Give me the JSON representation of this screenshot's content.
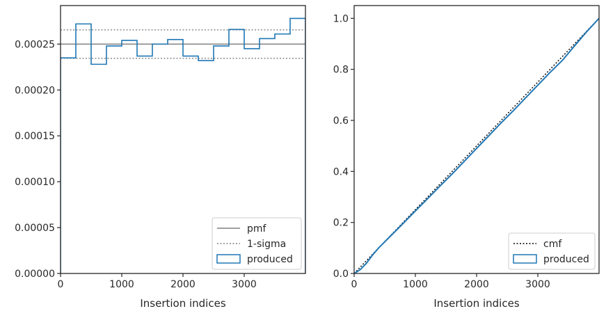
{
  "chart_data": [
    {
      "type": "line",
      "xlabel": "Insertion indices",
      "ylabel": "",
      "xlim": [
        0,
        4000
      ],
      "ylim": [
        0,
        0.000292
      ],
      "xticks": [
        0,
        1000,
        2000,
        3000
      ],
      "xtick_labels": [
        "0",
        "1000",
        "2000",
        "3000"
      ],
      "yticks": [
        0,
        5e-05,
        0.0001,
        0.00015,
        0.0002,
        0.00025
      ],
      "ytick_labels": [
        "0.00000",
        "0.00005",
        "0.00010",
        "0.00015",
        "0.00020",
        "0.00025"
      ],
      "grid": false,
      "legend_placement": "lower-right",
      "series": [
        {
          "name": "pmf",
          "style": "solid",
          "color": "#808080",
          "x": [
            0,
            4000
          ],
          "y": [
            0.00025,
            0.00025
          ]
        },
        {
          "name": "1-sigma",
          "style": "dotted",
          "color": "#808080",
          "x": [
            0,
            4000
          ],
          "y": [
            0.0002345,
            0.0002345
          ],
          "y_upper": [
            0.0002655,
            0.0002655
          ]
        },
        {
          "name": "produced",
          "style": "step-histogram",
          "color": "#1f77b4",
          "bin_edges": [
            0,
            250,
            500,
            750,
            1000,
            1250,
            1500,
            1750,
            2000,
            2250,
            2500,
            2750,
            3000,
            3250,
            3500,
            3750,
            4000
          ],
          "values": [
            0.000235,
            0.000272,
            0.000228,
            0.000248,
            0.000254,
            0.000237,
            0.00025,
            0.000255,
            0.000237,
            0.000232,
            0.000248,
            0.000266,
            0.000245,
            0.000256,
            0.000261,
            0.000278
          ]
        }
      ]
    },
    {
      "type": "line",
      "xlabel": "Insertion indices",
      "ylabel": "",
      "xlim": [
        0,
        4000
      ],
      "ylim": [
        0,
        1.05
      ],
      "xticks": [
        0,
        1000,
        2000,
        3000
      ],
      "xtick_labels": [
        "0",
        "1000",
        "2000",
        "3000"
      ],
      "yticks": [
        0,
        0.2,
        0.4,
        0.6,
        0.8,
        1.0
      ],
      "ytick_labels": [
        "0.0",
        "0.2",
        "0.4",
        "0.6",
        "0.8",
        "1.0"
      ],
      "grid": false,
      "legend_placement": "lower-right",
      "series": [
        {
          "name": "cmf",
          "style": "dotted",
          "color": "#000000",
          "x": [
            0,
            4000
          ],
          "y": [
            0,
            1
          ]
        },
        {
          "name": "produced",
          "style": "step-cumulative",
          "color": "#1f77b4",
          "x": [
            0,
            100,
            200,
            300,
            400,
            600,
            800,
            1000,
            1200,
            1400,
            1600,
            1800,
            2000,
            2200,
            2400,
            2600,
            2800,
            3000,
            3200,
            3400,
            3600,
            3800,
            4000
          ],
          "y": [
            0,
            0.015,
            0.04,
            0.072,
            0.1,
            0.148,
            0.196,
            0.245,
            0.293,
            0.342,
            0.39,
            0.44,
            0.49,
            0.54,
            0.59,
            0.638,
            0.688,
            0.738,
            0.788,
            0.835,
            0.892,
            0.948,
            1.0
          ]
        }
      ]
    }
  ]
}
